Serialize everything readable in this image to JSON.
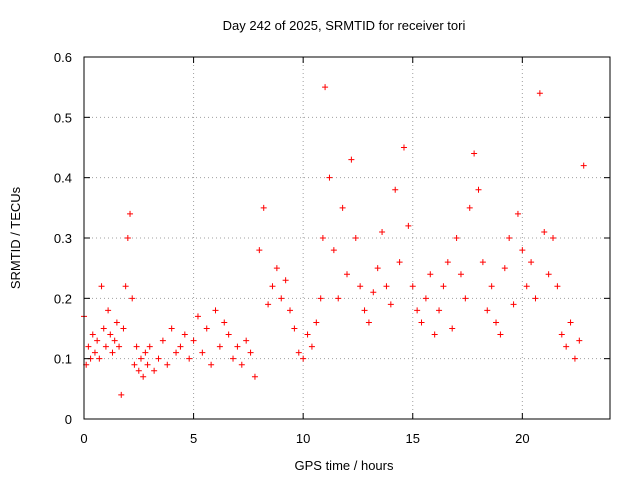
{
  "chart_data": {
    "type": "scatter",
    "title": "Day 242 of 2025, SRMTID for receiver tori",
    "xlabel": "GPS time / hours",
    "ylabel": "SRMTID / TECUs",
    "xlim": [
      0,
      24
    ],
    "ylim": [
      0,
      0.6
    ],
    "xticks": [
      0,
      5,
      10,
      15,
      20
    ],
    "xtick_labels": [
      "0",
      "5",
      "10",
      "15",
      "20"
    ],
    "yticks": [
      0,
      0.1,
      0.2,
      0.3,
      0.4,
      0.5,
      0.6
    ],
    "ytick_labels": [
      "0",
      "0.1",
      "0.2",
      "0.3",
      "0.4",
      "0.5",
      "0.6"
    ],
    "grid": true,
    "marker": "+",
    "color": "#ff0000",
    "series": [
      {
        "name": "SRMTID",
        "x": [
          0.0,
          0.1,
          0.2,
          0.3,
          0.4,
          0.5,
          0.6,
          0.7,
          0.8,
          0.9,
          1.0,
          1.1,
          1.2,
          1.3,
          1.4,
          1.5,
          1.6,
          1.7,
          1.8,
          1.9,
          2.0,
          2.1,
          2.2,
          2.3,
          2.4,
          2.5,
          2.6,
          2.7,
          2.8,
          2.9,
          3.0,
          3.2,
          3.4,
          3.6,
          3.8,
          4.0,
          4.2,
          4.4,
          4.6,
          4.8,
          5.0,
          5.2,
          5.4,
          5.6,
          5.8,
          6.0,
          6.2,
          6.4,
          6.6,
          6.8,
          7.0,
          7.2,
          7.4,
          7.6,
          7.8,
          8.0,
          8.2,
          8.4,
          8.6,
          8.8,
          9.0,
          9.2,
          9.4,
          9.6,
          9.8,
          10.0,
          10.2,
          10.4,
          10.6,
          10.8,
          10.9,
          11.0,
          11.2,
          11.4,
          11.6,
          11.8,
          12.0,
          12.2,
          12.4,
          12.6,
          12.8,
          13.0,
          13.2,
          13.4,
          13.6,
          13.8,
          14.0,
          14.2,
          14.4,
          14.6,
          14.8,
          15.0,
          15.2,
          15.4,
          15.6,
          15.8,
          16.0,
          16.2,
          16.4,
          16.6,
          16.8,
          17.0,
          17.2,
          17.4,
          17.6,
          17.8,
          18.0,
          18.2,
          18.4,
          18.6,
          18.8,
          19.0,
          19.2,
          19.4,
          19.6,
          19.8,
          20.0,
          20.2,
          20.4,
          20.6,
          20.8,
          21.0,
          21.2,
          21.4,
          21.6,
          21.8,
          22.0,
          22.2,
          22.4,
          22.6,
          22.8
        ],
        "y": [
          0.17,
          0.09,
          0.12,
          0.1,
          0.14,
          0.11,
          0.13,
          0.1,
          0.22,
          0.15,
          0.12,
          0.18,
          0.14,
          0.11,
          0.13,
          0.16,
          0.12,
          0.04,
          0.15,
          0.22,
          0.3,
          0.34,
          0.2,
          0.09,
          0.12,
          0.08,
          0.1,
          0.07,
          0.11,
          0.09,
          0.12,
          0.08,
          0.1,
          0.13,
          0.09,
          0.15,
          0.11,
          0.12,
          0.14,
          0.1,
          0.13,
          0.17,
          0.11,
          0.15,
          0.09,
          0.18,
          0.12,
          0.16,
          0.14,
          0.1,
          0.12,
          0.09,
          0.13,
          0.11,
          0.07,
          0.28,
          0.35,
          0.19,
          0.22,
          0.25,
          0.2,
          0.23,
          0.18,
          0.15,
          0.11,
          0.1,
          0.14,
          0.12,
          0.16,
          0.2,
          0.3,
          0.55,
          0.4,
          0.28,
          0.2,
          0.35,
          0.24,
          0.43,
          0.3,
          0.22,
          0.18,
          0.16,
          0.21,
          0.25,
          0.31,
          0.22,
          0.19,
          0.38,
          0.26,
          0.45,
          0.32,
          0.22,
          0.18,
          0.16,
          0.2,
          0.24,
          0.14,
          0.18,
          0.22,
          0.26,
          0.15,
          0.3,
          0.24,
          0.2,
          0.35,
          0.44,
          0.38,
          0.26,
          0.18,
          0.22,
          0.16,
          0.14,
          0.25,
          0.3,
          0.19,
          0.34,
          0.28,
          0.22,
          0.26,
          0.2,
          0.54,
          0.31,
          0.24,
          0.3,
          0.22,
          0.14,
          0.12,
          0.16,
          0.1,
          0.13,
          0.42
        ]
      }
    ]
  }
}
